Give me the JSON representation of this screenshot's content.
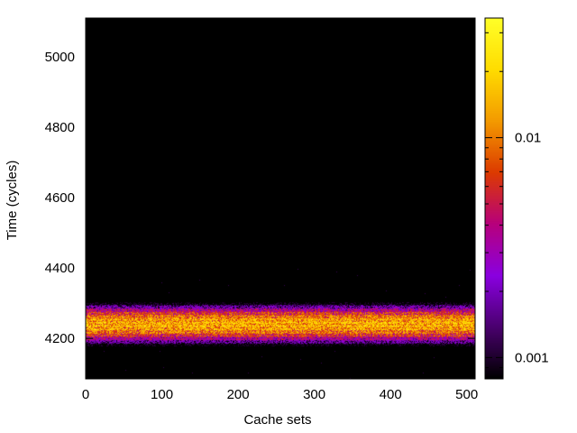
{
  "chart_data": {
    "type": "heatmap",
    "title": "",
    "xlabel": "Cache sets",
    "ylabel": "Time (cycles)",
    "xlim": [
      0,
      511
    ],
    "ylim": [
      4085,
      5110
    ],
    "xticks": [
      0,
      100,
      200,
      300,
      400,
      500
    ],
    "yticks": [
      4200,
      4400,
      4600,
      4800,
      5000
    ],
    "colorbar": {
      "scale": "log",
      "range": [
        0.0008,
        0.035
      ],
      "ticks": [
        {
          "value": 0.001,
          "label": "0.001"
        },
        {
          "value": 0.01,
          "label": "0.01"
        }
      ],
      "colormap": [
        "#000000",
        "#4a006e",
        "#8a00e0",
        "#b7007c",
        "#dc3a00",
        "#f39a00",
        "#ffdc00",
        "#ffff28"
      ]
    },
    "background_color": "#000000",
    "distribution": {
      "peak_time_cycles": 4240,
      "core_range_cycles": [
        4195,
        4285
      ],
      "visible_range_cycles": [
        4150,
        4330
      ],
      "peak_value": 0.015,
      "uniform_across_sets": true
    },
    "grid": false
  }
}
